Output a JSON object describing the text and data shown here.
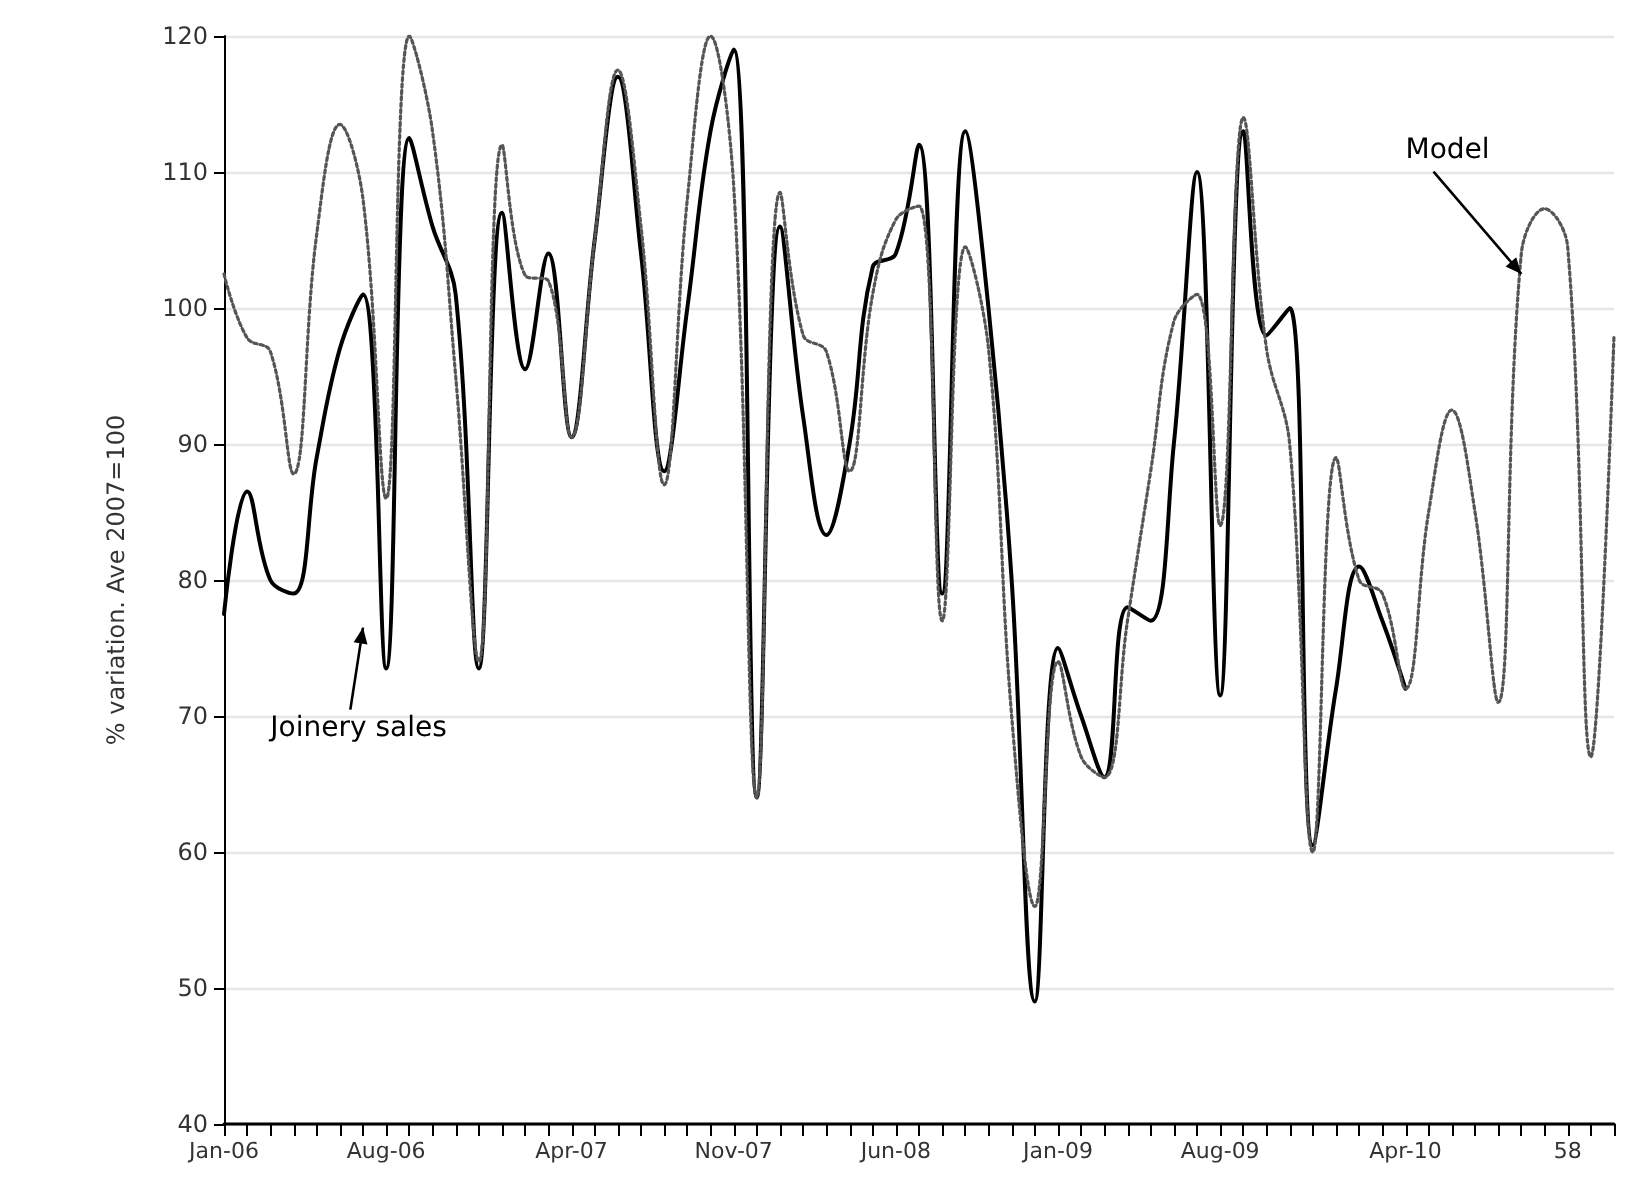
{
  "chart_data": {
    "type": "line",
    "ylabel": "% variation. Ave 2007=100",
    "categories": [
      "Jan-06",
      null,
      null,
      null,
      null,
      null,
      null,
      "Aug-06",
      null,
      null,
      null,
      null,
      null,
      null,
      null,
      "Apr-07",
      null,
      null,
      null,
      null,
      null,
      null,
      "Nov-07",
      null,
      null,
      null,
      null,
      null,
      null,
      "Jun-08",
      null,
      null,
      null,
      null,
      null,
      null,
      "Jan-09",
      null,
      null,
      null,
      null,
      null,
      null,
      "Aug-09",
      null,
      null,
      null,
      null,
      null,
      null,
      null,
      "Apr-10",
      null,
      null,
      null,
      null,
      null,
      null,
      "58",
      null,
      null
    ],
    "series": [
      {
        "name": "Joinery sales",
        "color": "#000000",
        "line_style": "solid",
        "values": [
          77.5,
          86.5,
          80,
          79,
          89,
          97,
          101,
          73.5,
          112.5,
          106,
          101,
          73.5,
          107,
          95.5,
          104,
          90.5,
          105,
          117,
          104,
          88,
          100,
          113,
          119,
          64,
          106,
          92,
          83.3,
          90,
          103,
          104,
          112,
          79,
          113,
          100,
          80,
          49,
          75,
          70,
          65.5,
          78,
          77,
          90,
          110,
          71.5,
          113,
          98,
          100,
          60.5,
          72,
          81,
          77,
          72,
          null,
          null,
          null,
          null,
          null,
          null,
          null,
          null,
          null
        ]
      },
      {
        "name": "Model",
        "color": "#555555",
        "line_style": "dotted",
        "values": [
          102.5,
          97.8,
          96.8,
          87.8,
          105.4,
          113.5,
          108,
          86,
          120,
          113,
          95,
          74,
          112,
          102.4,
          102,
          90.5,
          105,
          117.5,
          106,
          87,
          108,
          120,
          109,
          64,
          108.5,
          98,
          96.8,
          88,
          101,
          106.5,
          107.5,
          77,
          104.5,
          97,
          70,
          56,
          74,
          67,
          65.5,
          77,
          88,
          99,
          101,
          84,
          114,
          97,
          90,
          60,
          89,
          80,
          79,
          72,
          85,
          92.5,
          85,
          71,
          104,
          107.3,
          104.5,
          67,
          98
        ]
      }
    ],
    "ylim": [
      40,
      120
    ],
    "yticks": [
      40,
      50,
      60,
      70,
      80,
      90,
      100,
      110,
      120
    ],
    "grid": "y",
    "legend": false,
    "marker": "none"
  }
}
